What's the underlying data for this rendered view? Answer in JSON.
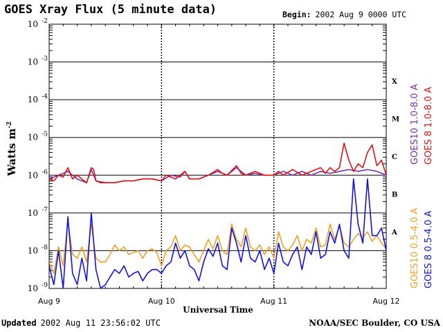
{
  "header": {
    "title": "GOES Xray Flux (5 minute data)",
    "begin_label": "Begin:",
    "begin_value": "2002 Aug 9 0000 UTC"
  },
  "footer": {
    "updated_label": "Updated",
    "updated_value": "2002 Aug 11 23:56:02 UTC",
    "credit": "NOAA/SEC Boulder, CO USA"
  },
  "chart_data": {
    "type": "line",
    "title": "GOES Xray Flux (5 minute data)",
    "xlabel": "Universal Time",
    "ylabel": "Watts m",
    "ylabel_exponent": "-2",
    "y_scale": "log",
    "ylim_exponents": [
      -9,
      -2
    ],
    "y_tick_base": "10",
    "y_tick_exponents": [
      "-9",
      "-8",
      "-7",
      "-6",
      "-5",
      "-4",
      "-3",
      "-2"
    ],
    "x_tick_labels": [
      "Aug 9",
      "Aug 10",
      "Aug 11",
      "Aug 12"
    ],
    "x_range_hours": [
      0,
      72
    ],
    "flare_classes": [
      {
        "label": "A",
        "exponent": -8
      },
      {
        "label": "B",
        "exponent": -7
      },
      {
        "label": "C",
        "exponent": -6
      },
      {
        "label": "M",
        "exponent": -5
      },
      {
        "label": "X",
        "exponent": -4
      }
    ],
    "legend": [
      {
        "name": "GOES10 1.0-8.0 A",
        "color": "#7a2ea8"
      },
      {
        "name": "GOES 8 1.0-8.0 A",
        "color": "#e01010"
      },
      {
        "name": "GOES10 0.5-4.0 A",
        "color": "#f0a020"
      },
      {
        "name": "GOES 8 0.5-4.0 A",
        "color": "#1010e0"
      }
    ],
    "series": [
      {
        "name": "GOES10 1.0-8.0 A",
        "color": "#7a2ea8",
        "hours": [
          0,
          2,
          4,
          6,
          8,
          9,
          10,
          12,
          14,
          16,
          18,
          20,
          22,
          24,
          26,
          28,
          29,
          30,
          32,
          34,
          36,
          38,
          40,
          42,
          44,
          46,
          48,
          50,
          52,
          54,
          56,
          58,
          60,
          62,
          64,
          66,
          68,
          70,
          72
        ],
        "log_flux": [
          -6.1,
          -6.0,
          -5.9,
          -6.1,
          -6.2,
          -5.85,
          -6.15,
          -6.2,
          -6.2,
          -6.15,
          -6.15,
          -6.1,
          -6.1,
          -6.15,
          -6.0,
          -6.05,
          -5.9,
          -6.1,
          -6.1,
          -6.0,
          -5.9,
          -6.0,
          -5.8,
          -6.0,
          -5.95,
          -6.0,
          -6.0,
          -5.9,
          -6.0,
          -5.9,
          -6.0,
          -5.9,
          -5.95,
          -5.9,
          -5.85,
          -5.9,
          -5.85,
          -5.9,
          -6.0
        ]
      },
      {
        "name": "GOES 8 1.0-8.0 A",
        "color": "#e01010",
        "hours": [
          0,
          1,
          2,
          3,
          4,
          5,
          6,
          7,
          8,
          9,
          9.5,
          10,
          11,
          12,
          14,
          16,
          18,
          20,
          22,
          24,
          25,
          26,
          27,
          28,
          29,
          30,
          32,
          34,
          36,
          37,
          38,
          40,
          41,
          42,
          44,
          46,
          48,
          49,
          50,
          52,
          54,
          56,
          58,
          59,
          60,
          61,
          62,
          63,
          64,
          65,
          66,
          67,
          68,
          69,
          70,
          71,
          72
        ],
        "log_flux": [
          -6.1,
          -6.15,
          -6.0,
          -6.05,
          -5.8,
          -6.1,
          -6.0,
          -6.1,
          -6.2,
          -5.8,
          -5.85,
          -6.15,
          -6.2,
          -6.2,
          -6.2,
          -6.15,
          -6.15,
          -6.1,
          -6.1,
          -6.15,
          -6.0,
          -6.05,
          -6.1,
          -6.0,
          -5.9,
          -6.1,
          -6.1,
          -6.0,
          -5.85,
          -5.95,
          -6.0,
          -5.75,
          -5.95,
          -6.0,
          -5.9,
          -6.0,
          -6.0,
          -5.9,
          -6.0,
          -5.85,
          -6.0,
          -5.9,
          -5.8,
          -5.95,
          -5.8,
          -5.9,
          -5.8,
          -5.15,
          -5.6,
          -5.9,
          -5.7,
          -5.8,
          -5.4,
          -5.2,
          -5.75,
          -5.6,
          -6.0
        ]
      },
      {
        "name": "GOES10 0.5-4.0 A",
        "color": "#f0a020",
        "hours": [
          0,
          1,
          2,
          3,
          4,
          5,
          6,
          7,
          8,
          9,
          10,
          11,
          12,
          13,
          14,
          15,
          16,
          17,
          18,
          19,
          20,
          21,
          22,
          23,
          24,
          25,
          26,
          27,
          28,
          29,
          30,
          31,
          32,
          33,
          34,
          35,
          36,
          37,
          38,
          39,
          40,
          41,
          42,
          43,
          44,
          45,
          46,
          47,
          48,
          49,
          50,
          51,
          52,
          53,
          54,
          55,
          56,
          57,
          58,
          59,
          60,
          61,
          62,
          63,
          64,
          65,
          66,
          67,
          68,
          69,
          70,
          71,
          72
        ],
        "log_flux": [
          -8.3,
          -8.6,
          -7.9,
          -8.4,
          -7.2,
          -8.1,
          -8.2,
          -7.9,
          -8.3,
          -7.3,
          -8.2,
          -8.3,
          -8.3,
          -8.1,
          -7.85,
          -8.0,
          -7.9,
          -8.1,
          -8.05,
          -8.0,
          -8.2,
          -8.0,
          -7.95,
          -8.05,
          -8.4,
          -8.0,
          -7.9,
          -7.6,
          -8.0,
          -7.85,
          -7.9,
          -8.1,
          -8.3,
          -8.0,
          -7.7,
          -7.95,
          -7.6,
          -8.0,
          -8.1,
          -7.3,
          -7.7,
          -7.9,
          -7.4,
          -7.9,
          -8.0,
          -7.85,
          -8.1,
          -7.9,
          -8.2,
          -7.5,
          -7.9,
          -8.0,
          -7.85,
          -7.6,
          -8.0,
          -7.7,
          -7.8,
          -7.4,
          -7.9,
          -7.85,
          -7.3,
          -7.7,
          -7.35,
          -7.8,
          -7.9,
          -7.7,
          -7.55,
          -7.65,
          -7.5,
          -7.75,
          -7.6,
          -7.8,
          -7.95
        ]
      },
      {
        "name": "GOES 8 0.5-4.0 A",
        "color": "#1010e0",
        "hours": [
          0,
          1,
          2,
          3,
          4,
          5,
          6,
          7,
          8,
          9,
          10,
          11,
          12,
          13,
          14,
          15,
          16,
          17,
          18,
          19,
          20,
          21,
          22,
          23,
          24,
          25,
          26,
          27,
          28,
          29,
          30,
          31,
          32,
          33,
          34,
          35,
          36,
          37,
          38,
          39,
          40,
          41,
          42,
          43,
          44,
          45,
          46,
          47,
          48,
          49,
          50,
          51,
          52,
          53,
          54,
          55,
          56,
          57,
          58,
          59,
          60,
          61,
          62,
          63,
          64,
          65,
          66,
          67,
          68,
          69,
          70,
          71,
          72
        ],
        "log_flux": [
          -8.4,
          -8.9,
          -8.0,
          -9.0,
          -7.1,
          -8.6,
          -8.9,
          -8.2,
          -8.8,
          -7.0,
          -8.5,
          -9.0,
          -8.9,
          -8.7,
          -8.5,
          -8.6,
          -8.4,
          -8.7,
          -8.6,
          -8.55,
          -8.8,
          -8.6,
          -8.5,
          -8.5,
          -8.6,
          -8.4,
          -8.3,
          -7.8,
          -8.2,
          -8.0,
          -8.4,
          -8.5,
          -8.8,
          -8.3,
          -7.95,
          -8.15,
          -7.8,
          -8.4,
          -8.5,
          -7.4,
          -7.8,
          -8.3,
          -7.6,
          -8.2,
          -8.3,
          -8.0,
          -8.5,
          -8.2,
          -8.6,
          -7.8,
          -8.3,
          -8.4,
          -8.1,
          -7.9,
          -8.5,
          -7.9,
          -8.1,
          -7.5,
          -8.2,
          -8.1,
          -7.5,
          -7.8,
          -7.3,
          -8.0,
          -8.2,
          -6.1,
          -7.3,
          -7.8,
          -6.1,
          -7.6,
          -7.6,
          -7.4,
          -8.0
        ]
      }
    ]
  }
}
